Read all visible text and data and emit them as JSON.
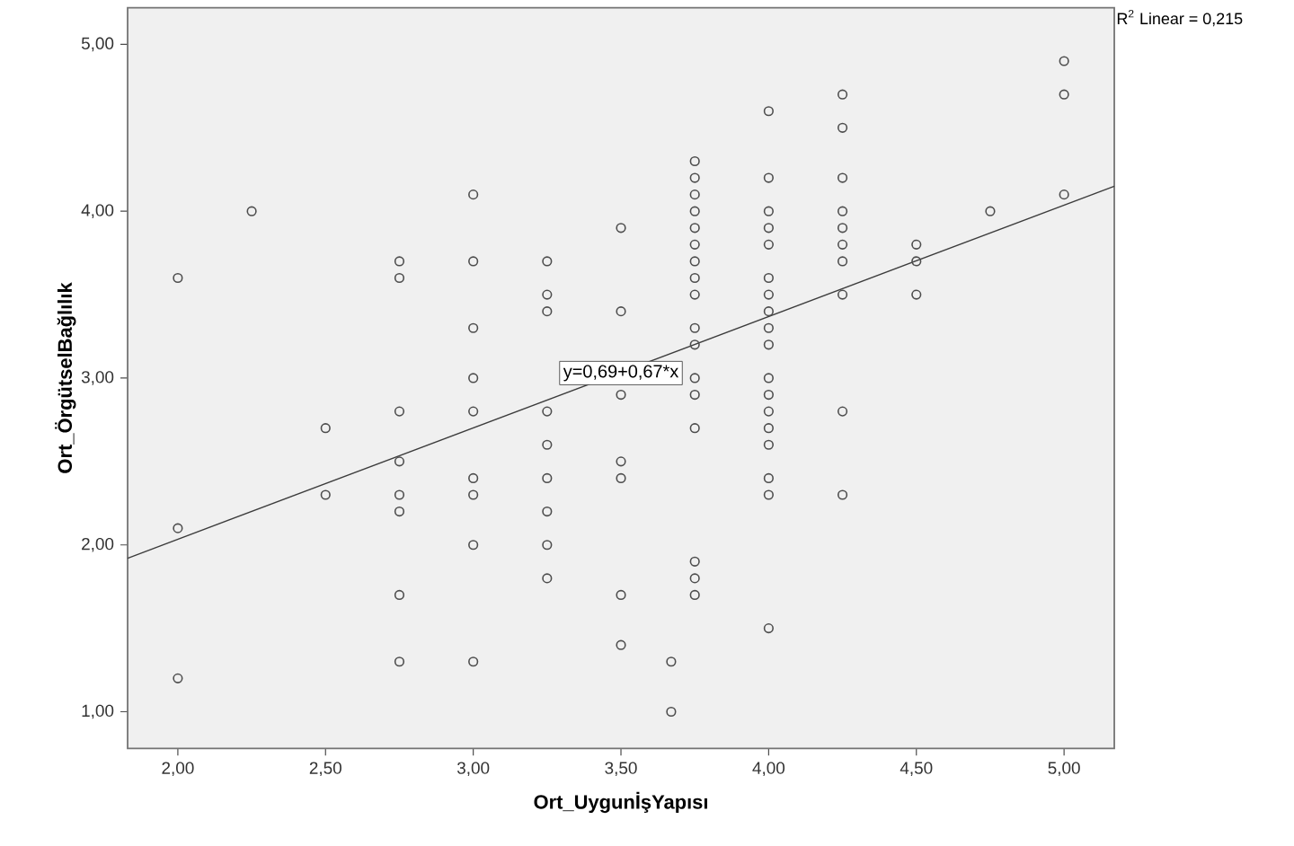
{
  "chart_data": {
    "type": "scatter",
    "xlabel": "Ort_UygunİşYapısı",
    "ylabel": "Ort_ÖrgütselBağlılık",
    "annotations": [
      {
        "text": "y=0,69+0,67*x",
        "x": 3.5,
        "y": 3.03
      },
      "R$^{2}$ Linear = 0,215"
    ],
    "xlim": [
      1.83,
      5.17
    ],
    "ylim": [
      0.78,
      5.22
    ],
    "xticks": [
      {
        "value": 2,
        "label": "2,00"
      },
      {
        "value": 2.5,
        "label": "2,50"
      },
      {
        "value": 3,
        "label": "3,00"
      },
      {
        "value": 3.5,
        "label": "3,50"
      },
      {
        "value": 4,
        "label": "4,00"
      },
      {
        "value": 4.5,
        "label": "4,50"
      },
      {
        "value": 5,
        "label": "5,00"
      }
    ],
    "yticks": [
      {
        "value": 1,
        "label": "1,00"
      },
      {
        "value": 2,
        "label": "2,00"
      },
      {
        "value": 3,
        "label": "3,00"
      },
      {
        "value": 4,
        "label": "4,00"
      },
      {
        "value": 5,
        "label": "5,00"
      }
    ],
    "series": [
      {
        "color": "#4d4d4d",
        "marker": "circle",
        "x": [
          2,
          2,
          2,
          2.25,
          2.5,
          2.5,
          2.75,
          2.75,
          2.75,
          2.75,
          2.75,
          2.75,
          2.75,
          2.75,
          3,
          3,
          3,
          3,
          3,
          3,
          3,
          3,
          3,
          3.25,
          3.25,
          3.25,
          3.25,
          3.25,
          3.25,
          3.25,
          3.25,
          3.25,
          3.5,
          3.5,
          3.5,
          3.5,
          3.5,
          3.5,
          3.5,
          3.67,
          3.67,
          3.75,
          3.75,
          3.75,
          3.75,
          3.75,
          3.75,
          3.75,
          3.75,
          3.75,
          3.75,
          3.75,
          3.75,
          3.75,
          3.75,
          3.75,
          3.75,
          3.75,
          4,
          4,
          4,
          4,
          4,
          4,
          4,
          4,
          4,
          4,
          4,
          4,
          4,
          4,
          4,
          4,
          4,
          4,
          4.25,
          4.25,
          4.25,
          4.25,
          4.25,
          4.25,
          4.25,
          4.25,
          4.25,
          4.25,
          4.5,
          4.5,
          4.5,
          4.75,
          5,
          5,
          5
        ],
        "values": [
          3.6,
          2.1,
          1.2,
          4.0,
          2.7,
          2.3,
          3.7,
          3.6,
          2.8,
          2.5,
          2.3,
          2.2,
          1.7,
          1.3,
          4.1,
          3.7,
          3.3,
          3.0,
          2.8,
          2.4,
          2.3,
          2.0,
          1.3,
          3.7,
          3.5,
          3.4,
          2.8,
          2.6,
          2.4,
          2.2,
          2.0,
          1.8,
          3.9,
          3.4,
          2.9,
          2.5,
          2.4,
          1.7,
          1.4,
          1.3,
          1.0,
          4.3,
          4.2,
          4.1,
          4.0,
          3.9,
          3.8,
          3.7,
          3.6,
          3.5,
          3.3,
          3.2,
          3.0,
          2.9,
          2.7,
          1.9,
          1.8,
          1.7,
          4.6,
          4.2,
          4.0,
          3.9,
          3.8,
          3.6,
          3.5,
          3.4,
          3.3,
          3.2,
          3.0,
          2.9,
          2.8,
          2.7,
          2.6,
          2.4,
          2.3,
          1.5,
          4.7,
          4.5,
          4.2,
          4.0,
          3.9,
          3.8,
          3.7,
          3.5,
          2.8,
          2.3,
          3.8,
          3.7,
          3.5,
          4.0,
          4.9,
          4.7,
          4.1
        ]
      },
      {
        "type": "line",
        "color": "#3c3c3c",
        "marker": "none",
        "x": [
          1.83,
          5.17
        ],
        "values": [
          1.92,
          4.15
        ]
      }
    ]
  }
}
